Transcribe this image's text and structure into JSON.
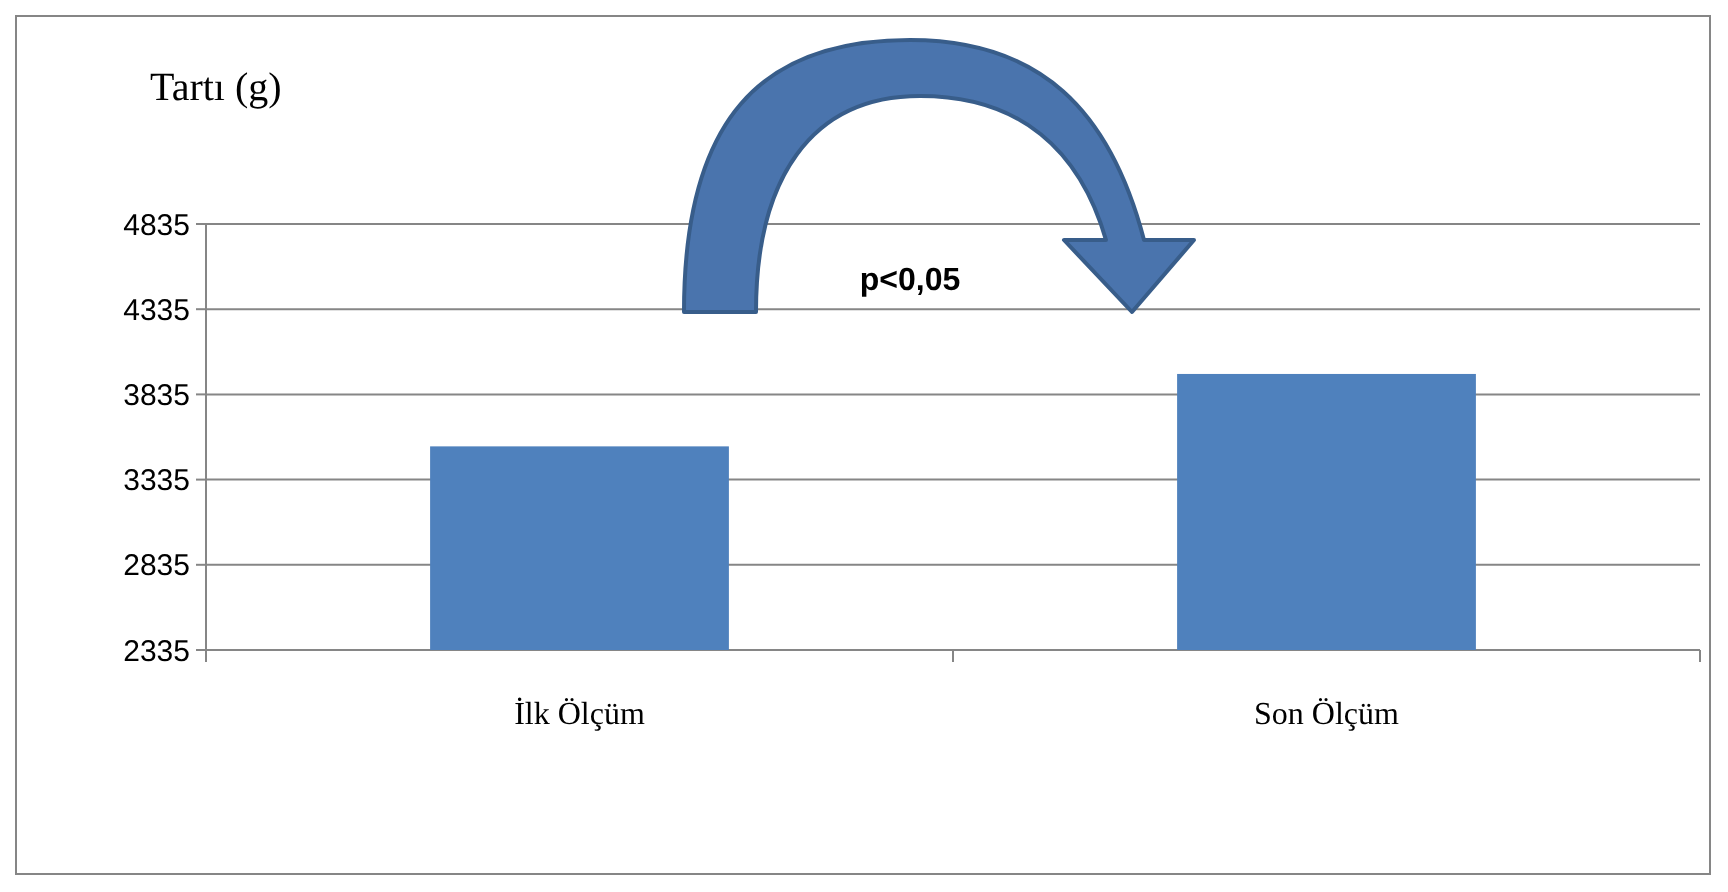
{
  "chart_data": {
    "type": "bar",
    "ylabel": "Tartı (g)",
    "categories": [
      "İlk Ölçüm",
      "Son Ölçüm"
    ],
    "values": [
      3530,
      3955
    ],
    "color": "#4f81bd",
    "ylim": [
      2335,
      4835
    ],
    "yticks": [
      2335,
      2835,
      3335,
      3835,
      4335,
      4835
    ],
    "grid": "y",
    "annotations": [
      "p<0,05"
    ]
  }
}
